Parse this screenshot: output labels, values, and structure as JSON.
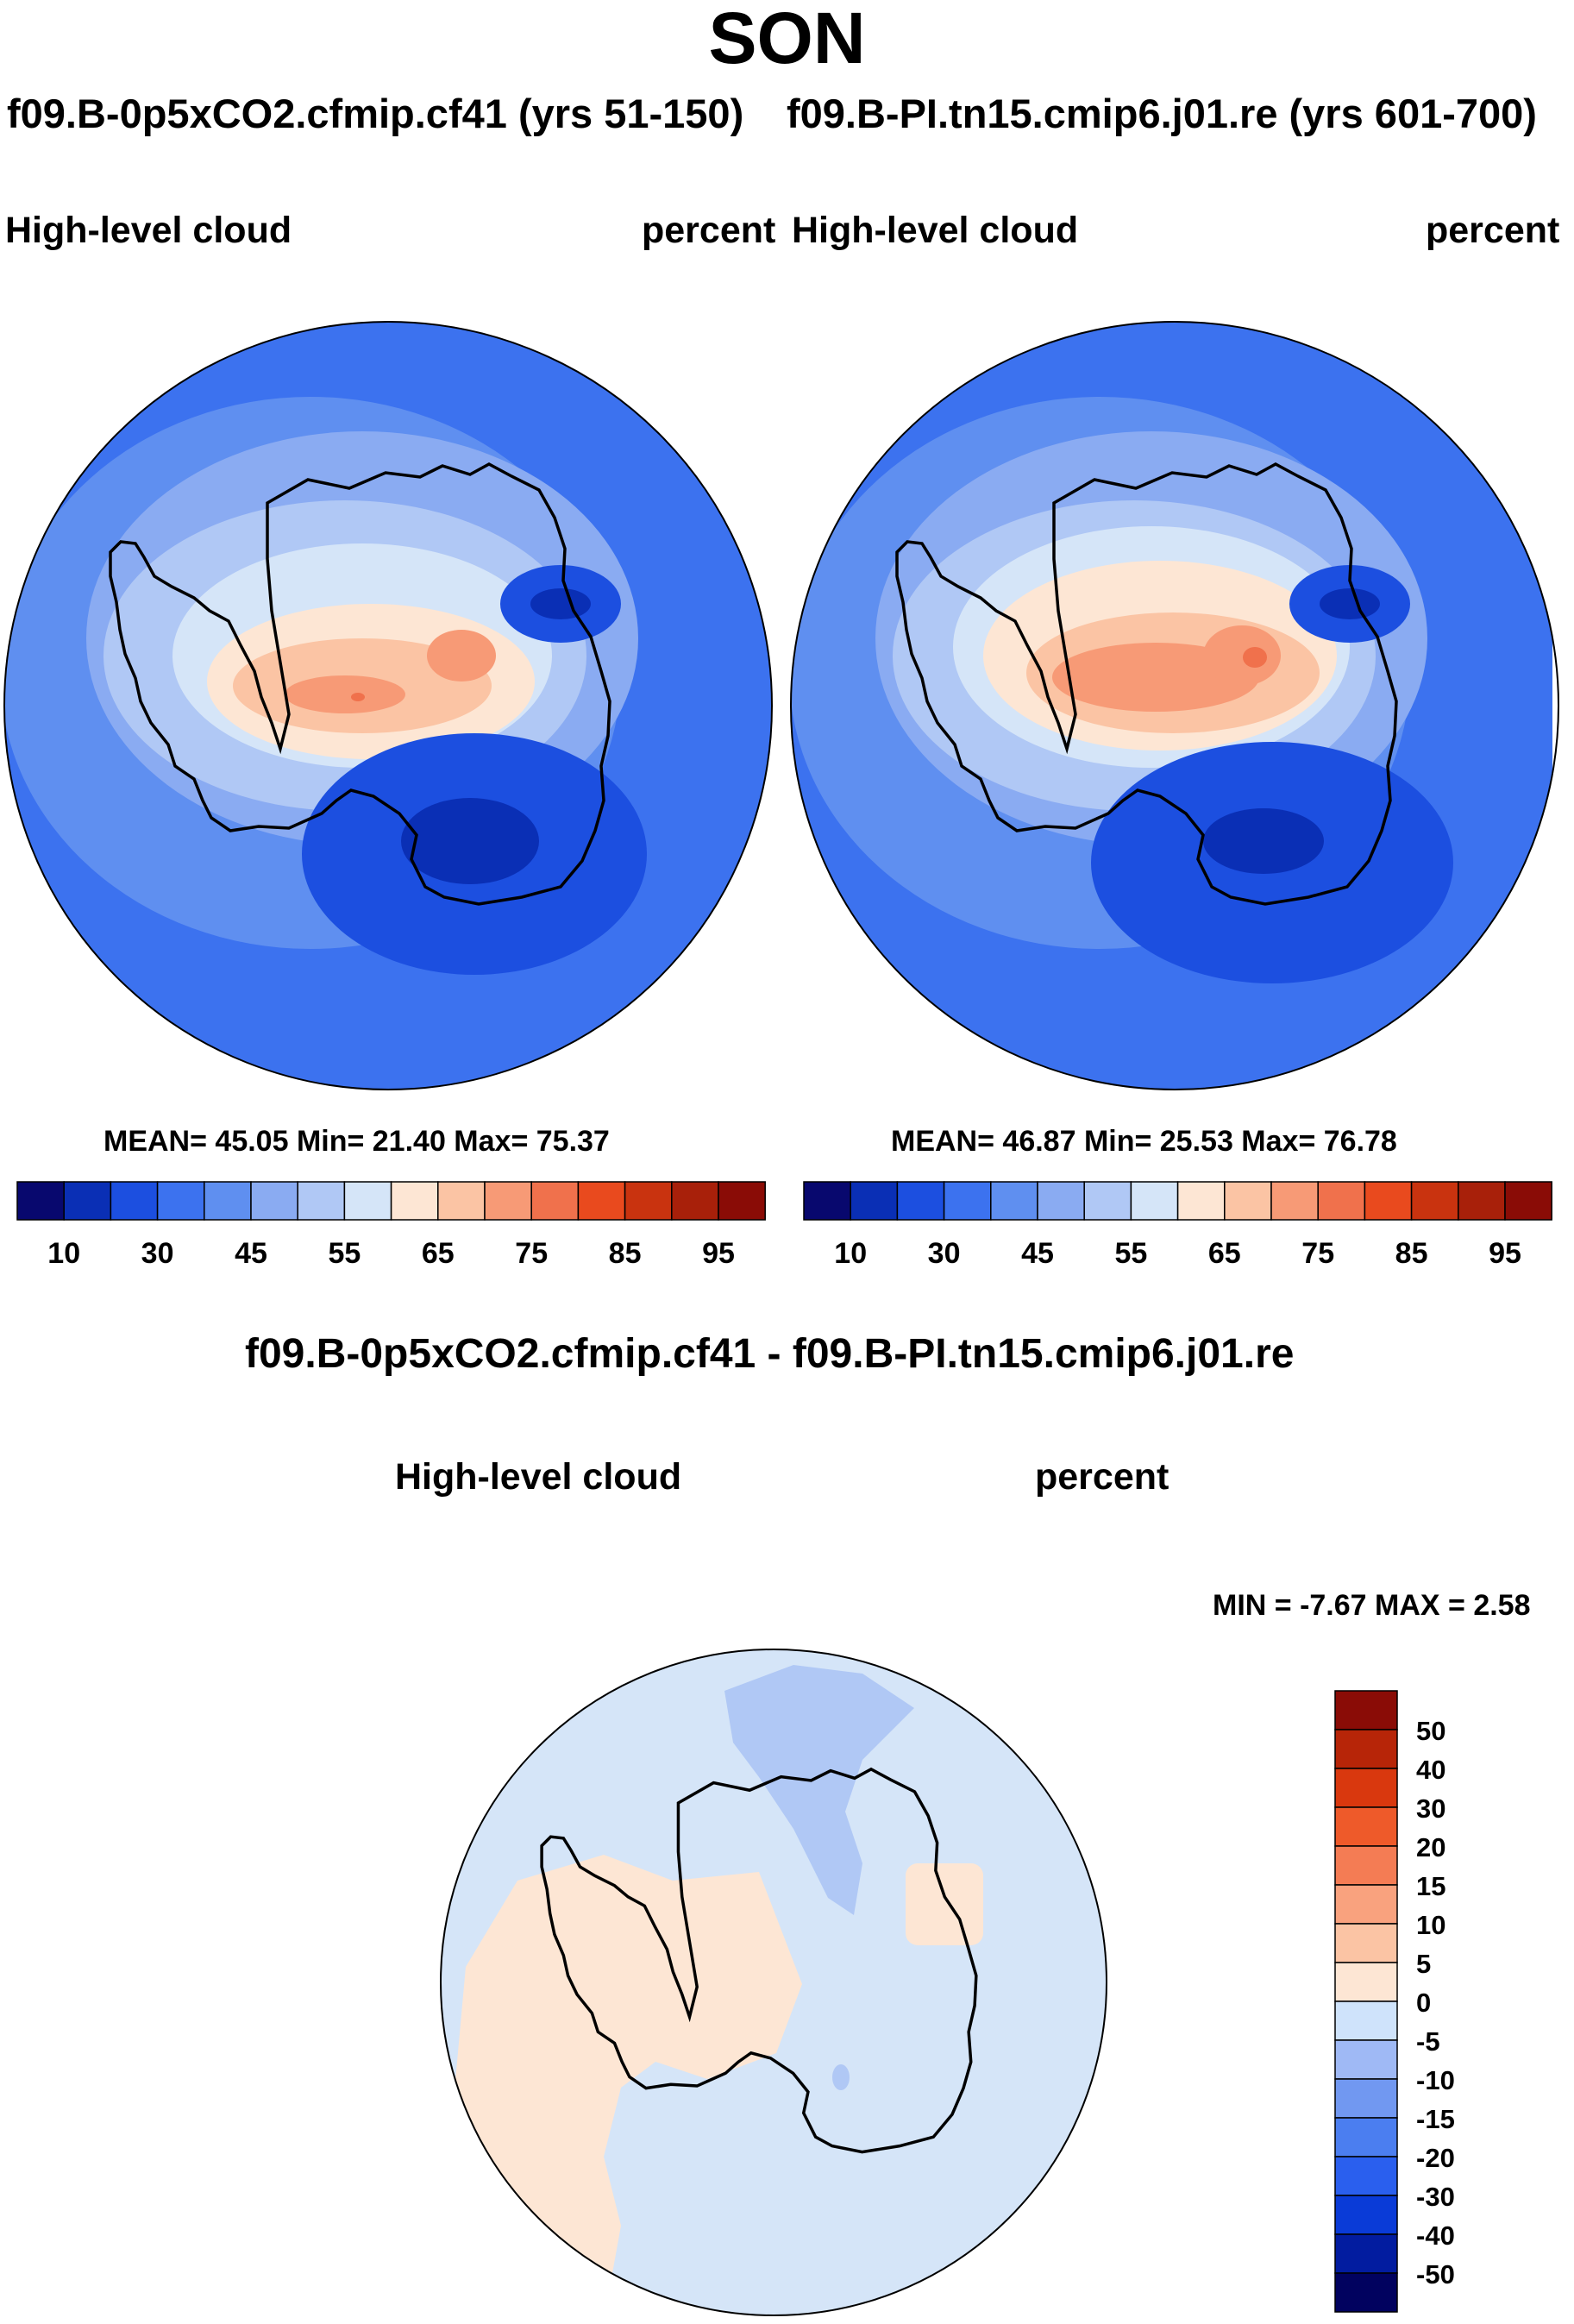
{
  "season": "SON",
  "case_left": "f09.B-0p5xCO2.cfmip.cf41 (yrs 51-150)",
  "case_right": "f09.B-PI.tn15.cmip6.j01.re (yrs 601-700)",
  "diff_title": "f09.B-0p5xCO2.cfmip.cf41 - f09.B-PI.tn15.cmip6.j01.re",
  "colors": {
    "abs_scale": [
      "#08086e",
      "#0a2fb5",
      "#1c4fe0",
      "#3c72ef",
      "#5f8ff0",
      "#8aabf2",
      "#b0c8f5",
      "#d5e5f8",
      "#fde6d4",
      "#fbc4a4",
      "#f79a76",
      "#f0714c",
      "#e94a1e",
      "#c9330f",
      "#a8200a",
      "#8a0c06"
    ],
    "diff_scale": [
      "#01025f",
      "#021ca0",
      "#0a3bd7",
      "#2a5fee",
      "#4b7ef0",
      "#7198f1",
      "#9fb9f5",
      "#cfe3fb",
      "#fde6d4",
      "#fbc4a4",
      "#f9a27e",
      "#f47c54",
      "#ee5a2a",
      "#d9380e",
      "#b72508",
      "#8a0c06"
    ]
  },
  "left_panel": {
    "variable": "High-level cloud",
    "units": "percent",
    "stats": "MEAN=  45.05  Min=  21.40  Max=  75.37",
    "colorbar_labels": [
      "10",
      "30",
      "45",
      "55",
      "65",
      "75",
      "85",
      "95"
    ]
  },
  "right_panel": {
    "variable": "High-level cloud",
    "units": "percent",
    "stats": "MEAN=  46.87  Min=  25.53  Max=  76.78",
    "colorbar_labels": [
      "10",
      "30",
      "45",
      "55",
      "65",
      "75",
      "85",
      "95"
    ]
  },
  "diff_panel": {
    "variable": "High-level cloud",
    "units": "percent",
    "minmax": "MIN =  -7.67 MAX =   2.58",
    "colorbar_labels": [
      "50",
      "40",
      "30",
      "20",
      "15",
      "10",
      "5",
      "0",
      "-5",
      "-10",
      "-15",
      "-20",
      "-30",
      "-40",
      "-50"
    ]
  }
}
